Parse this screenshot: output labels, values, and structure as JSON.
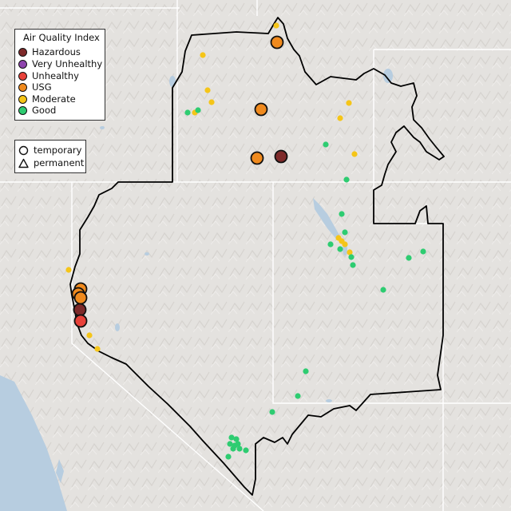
{
  "legend": {
    "title": "Air Quality Index",
    "categories": [
      {
        "label": "Hazardous",
        "color": "#7e2a2a"
      },
      {
        "label": "Very Unhealthy",
        "color": "#8e44ad"
      },
      {
        "label": "Unhealthy",
        "color": "#e8423a"
      },
      {
        "label": "USG",
        "color": "#f08a1e"
      },
      {
        "label": "Moderate",
        "color": "#f5c518"
      },
      {
        "label": "Good",
        "color": "#2ecc71"
      }
    ]
  },
  "monitor_types": {
    "temporary": "temporary",
    "permanent": "permanent"
  },
  "colors": {
    "land": "#e4e2df",
    "water": "#b7cde0",
    "boundary": "#000000",
    "state_lines": "#ffffff"
  }
}
